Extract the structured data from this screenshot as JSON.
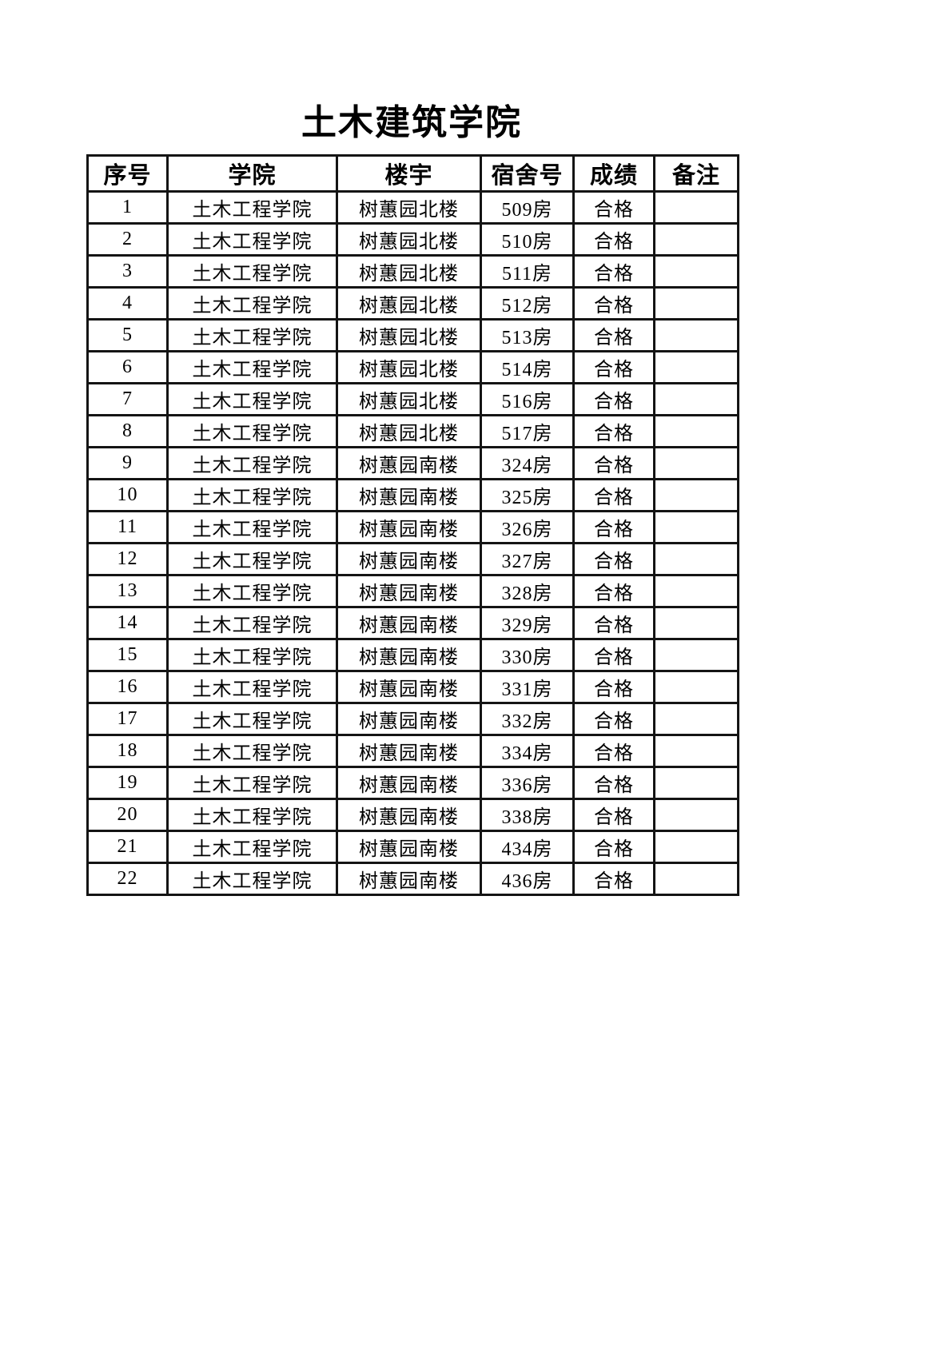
{
  "page": {
    "title": "土木建筑学院"
  },
  "table": {
    "columns": [
      {
        "key": "index",
        "label": "序号"
      },
      {
        "key": "college",
        "label": "学院"
      },
      {
        "key": "building",
        "label": "楼宇"
      },
      {
        "key": "room",
        "label": "宿舍号"
      },
      {
        "key": "score",
        "label": "成绩"
      },
      {
        "key": "remark",
        "label": "备注"
      }
    ],
    "rows": [
      {
        "index": "1",
        "college": "土木工程学院",
        "building": "树蕙园北楼",
        "room": "509房",
        "score": "合格",
        "remark": ""
      },
      {
        "index": "2",
        "college": "土木工程学院",
        "building": "树蕙园北楼",
        "room": "510房",
        "score": "合格",
        "remark": ""
      },
      {
        "index": "3",
        "college": "土木工程学院",
        "building": "树蕙园北楼",
        "room": "511房",
        "score": "合格",
        "remark": ""
      },
      {
        "index": "4",
        "college": "土木工程学院",
        "building": "树蕙园北楼",
        "room": "512房",
        "score": "合格",
        "remark": ""
      },
      {
        "index": "5",
        "college": "土木工程学院",
        "building": "树蕙园北楼",
        "room": "513房",
        "score": "合格",
        "remark": ""
      },
      {
        "index": "6",
        "college": "土木工程学院",
        "building": "树蕙园北楼",
        "room": "514房",
        "score": "合格",
        "remark": ""
      },
      {
        "index": "7",
        "college": "土木工程学院",
        "building": "树蕙园北楼",
        "room": "516房",
        "score": "合格",
        "remark": ""
      },
      {
        "index": "8",
        "college": "土木工程学院",
        "building": "树蕙园北楼",
        "room": "517房",
        "score": "合格",
        "remark": ""
      },
      {
        "index": "9",
        "college": "土木工程学院",
        "building": "树蕙园南楼",
        "room": "324房",
        "score": "合格",
        "remark": ""
      },
      {
        "index": "10",
        "college": "土木工程学院",
        "building": "树蕙园南楼",
        "room": "325房",
        "score": "合格",
        "remark": ""
      },
      {
        "index": "11",
        "college": "土木工程学院",
        "building": "树蕙园南楼",
        "room": "326房",
        "score": "合格",
        "remark": ""
      },
      {
        "index": "12",
        "college": "土木工程学院",
        "building": "树蕙园南楼",
        "room": "327房",
        "score": "合格",
        "remark": ""
      },
      {
        "index": "13",
        "college": "土木工程学院",
        "building": "树蕙园南楼",
        "room": "328房",
        "score": "合格",
        "remark": ""
      },
      {
        "index": "14",
        "college": "土木工程学院",
        "building": "树蕙园南楼",
        "room": "329房",
        "score": "合格",
        "remark": ""
      },
      {
        "index": "15",
        "college": "土木工程学院",
        "building": "树蕙园南楼",
        "room": "330房",
        "score": "合格",
        "remark": ""
      },
      {
        "index": "16",
        "college": "土木工程学院",
        "building": "树蕙园南楼",
        "room": "331房",
        "score": "合格",
        "remark": ""
      },
      {
        "index": "17",
        "college": "土木工程学院",
        "building": "树蕙园南楼",
        "room": "332房",
        "score": "合格",
        "remark": ""
      },
      {
        "index": "18",
        "college": "土木工程学院",
        "building": "树蕙园南楼",
        "room": "334房",
        "score": "合格",
        "remark": ""
      },
      {
        "index": "19",
        "college": "土木工程学院",
        "building": "树蕙园南楼",
        "room": "336房",
        "score": "合格",
        "remark": ""
      },
      {
        "index": "20",
        "college": "土木工程学院",
        "building": "树蕙园南楼",
        "room": "338房",
        "score": "合格",
        "remark": ""
      },
      {
        "index": "21",
        "college": "土木工程学院",
        "building": "树蕙园南楼",
        "room": "434房",
        "score": "合格",
        "remark": ""
      },
      {
        "index": "22",
        "college": "土木工程学院",
        "building": "树蕙园南楼",
        "room": "436房",
        "score": "合格",
        "remark": ""
      }
    ]
  }
}
